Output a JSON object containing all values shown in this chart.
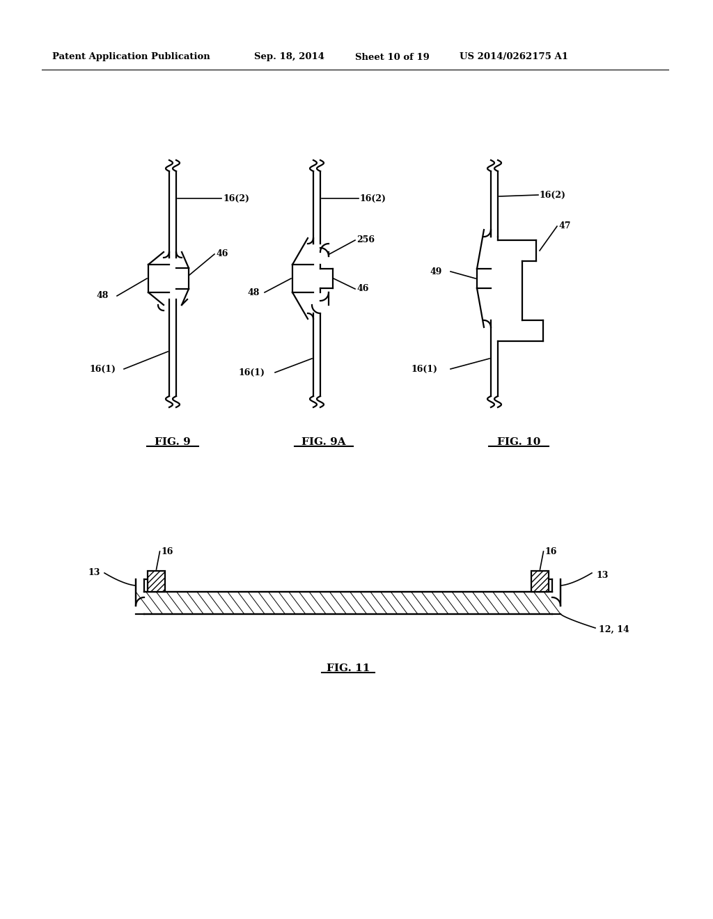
{
  "bg_color": "#ffffff",
  "line_color": "#000000",
  "header_text": "Patent Application Publication",
  "header_date": "Sep. 18, 2014",
  "header_sheet": "Sheet 10 of 19",
  "header_patent": "US 2014/0262175 A1",
  "fig9_label": "FIG. 9",
  "fig9a_label": "FIG. 9A",
  "fig10_label": "FIG. 10",
  "fig11_label": "FIG. 11",
  "lw": 1.6
}
